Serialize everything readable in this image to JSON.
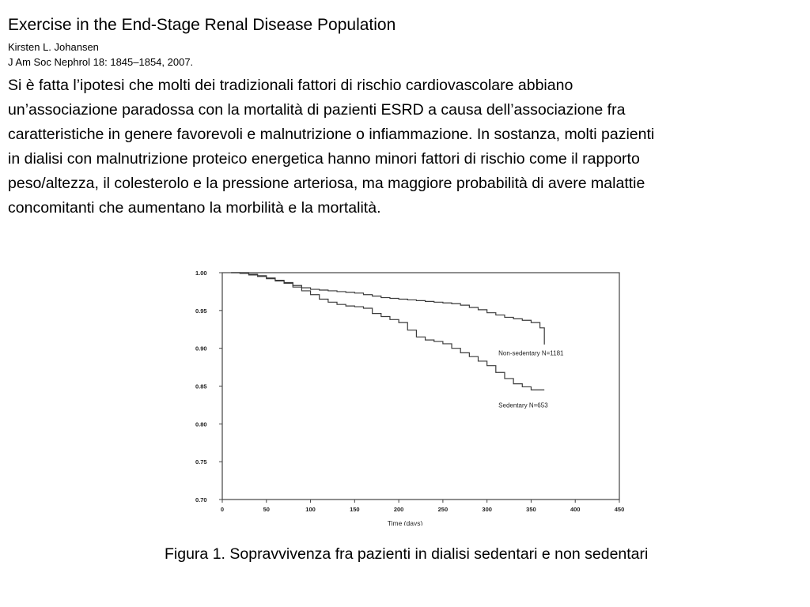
{
  "header": {
    "title": "Exercise in the End-Stage Renal Disease Population",
    "author": "Kirsten L. Johansen",
    "citation": "J Am Soc Nephrol 18: 1845–1854, 2007."
  },
  "body": {
    "lines": [
      "Si è fatta l’ipotesi che molti dei tradizionali fattori di rischio cardiovascolare abbiano",
      "un’associazione paradossa con la mortalità di pazienti ESRD a causa dell’associazione fra",
      "caratteristiche in genere favorevoli e malnutrizione o infiammazione. In sostanza, molti pazienti",
      "in dialisi con malnutrizione proteico energetica hanno minori fattori di rischio come il rapporto",
      "peso/altezza, il colesterolo e la pressione arteriosa, ma maggiore probabilità di avere malattie",
      "concomitanti che aumentano la morbilità e la mortalità."
    ]
  },
  "caption": "Figura 1. Sopravvivenza fra pazienti in dialisi sedentari e non sedentari",
  "colors": {
    "curve": "#3a3a3a",
    "axis": "#444444",
    "text": "#000000"
  },
  "chart_data": {
    "type": "line",
    "xlabel": "Time (days)",
    "ylabel": "",
    "xlim": [
      0,
      450
    ],
    "ylim": [
      0.7,
      1.0
    ],
    "xticks": [
      "0",
      "50",
      "100",
      "150",
      "200",
      "250",
      "300",
      "350",
      "400",
      "450"
    ],
    "yticks": [
      "0.70",
      "0.75",
      "0.80",
      "0.85",
      "0.90",
      "0.95",
      "1.00"
    ],
    "grid": false,
    "series": [
      {
        "name": "Non-sedentary N=1181",
        "x": [
          10,
          20,
          30,
          40,
          50,
          60,
          70,
          80,
          90,
          100,
          110,
          120,
          130,
          140,
          150,
          160,
          170,
          180,
          190,
          200,
          210,
          220,
          230,
          240,
          250,
          260,
          270,
          280,
          290,
          300,
          310,
          320,
          330,
          340,
          350,
          360,
          365,
          365
        ],
        "y": [
          1.0,
          1.0,
          0.998,
          0.996,
          0.993,
          0.99,
          0.987,
          0.983,
          0.98,
          0.978,
          0.977,
          0.976,
          0.975,
          0.974,
          0.973,
          0.971,
          0.969,
          0.967,
          0.966,
          0.965,
          0.964,
          0.963,
          0.962,
          0.961,
          0.96,
          0.959,
          0.957,
          0.954,
          0.951,
          0.947,
          0.944,
          0.941,
          0.939,
          0.937,
          0.934,
          0.927,
          0.92,
          0.905
        ]
      },
      {
        "name": "Sedentary N=653",
        "x": [
          10,
          20,
          30,
          40,
          50,
          60,
          70,
          80,
          90,
          100,
          110,
          120,
          130,
          140,
          150,
          160,
          170,
          180,
          190,
          200,
          210,
          220,
          230,
          240,
          250,
          260,
          270,
          280,
          290,
          300,
          310,
          320,
          330,
          340,
          350,
          360,
          365
        ],
        "y": [
          1.0,
          0.999,
          0.997,
          0.995,
          0.992,
          0.989,
          0.986,
          0.981,
          0.976,
          0.971,
          0.965,
          0.961,
          0.958,
          0.956,
          0.955,
          0.953,
          0.946,
          0.942,
          0.938,
          0.934,
          0.924,
          0.915,
          0.911,
          0.909,
          0.906,
          0.9,
          0.894,
          0.889,
          0.883,
          0.877,
          0.868,
          0.86,
          0.853,
          0.849,
          0.845,
          0.845,
          0.845
        ]
      }
    ],
    "annotations": [
      {
        "text": "Non-sedentary N=1181",
        "x": 313,
        "y": 0.891
      },
      {
        "text": "Sedentary N=653",
        "x": 313,
        "y": 0.822
      }
    ]
  }
}
